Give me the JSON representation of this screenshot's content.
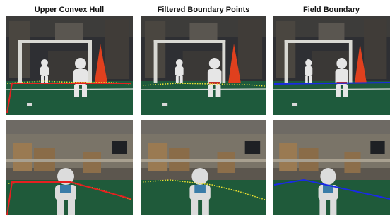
{
  "columns": [
    {
      "title": "Upper Convex Hull"
    },
    {
      "title": "Filtered Boundary Points"
    },
    {
      "title": "Field Boundary"
    }
  ]
}
